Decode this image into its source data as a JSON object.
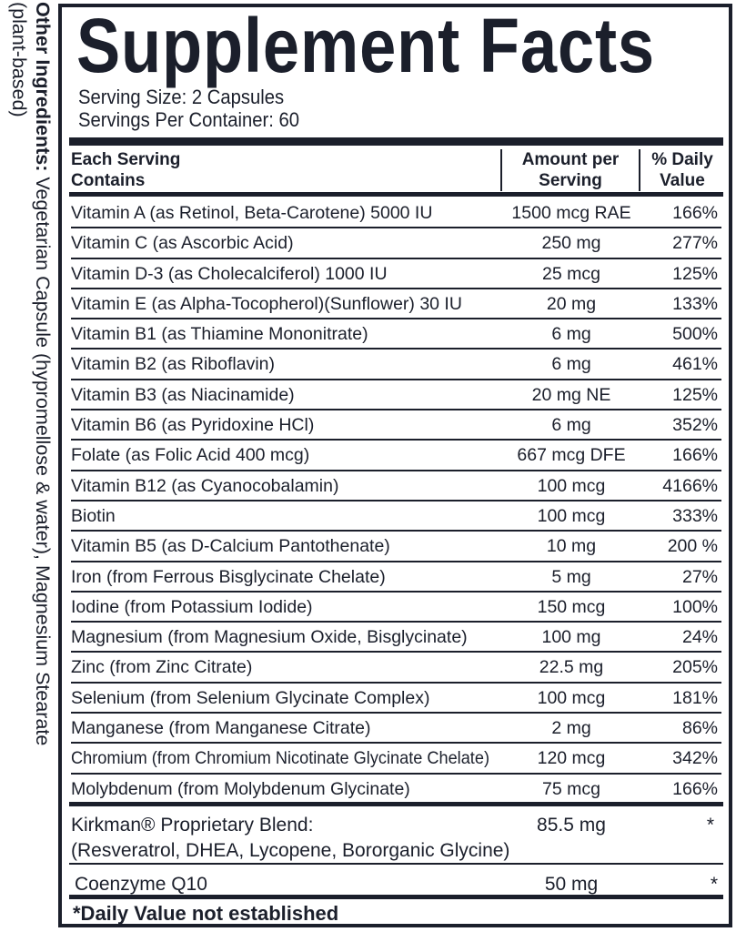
{
  "side_panel": {
    "label": "Other Ingredients:",
    "text": " Vegetarian Capsule (hypromellose & water), Magnesium Stearate",
    "line2": "(plant-based)"
  },
  "title": "Supplement Facts",
  "serving_size": "Serving Size: 2 Capsules",
  "servings_per_container": "Servings Per Container: 60",
  "header": {
    "col1": "Each Serving\nContains",
    "col2": "Amount per\nServing",
    "col3": "% Daily\nValue"
  },
  "rows": [
    {
      "name": "Vitamin A (as Retinol, Beta-Carotene) 5000 IU",
      "amount": "1500 mcg RAE",
      "dv": "166%"
    },
    {
      "name": "Vitamin C (as Ascorbic Acid)",
      "amount": "250 mg",
      "dv": "277%"
    },
    {
      "name": "Vitamin D-3 (as Cholecalciferol) 1000 IU",
      "amount": "25 mcg",
      "dv": "125%"
    },
    {
      "name": "Vitamin E (as Alpha-Tocopherol)(Sunflower) 30 IU",
      "amount": "20 mg",
      "dv": "133%"
    },
    {
      "name": "Vitamin B1 (as Thiamine Mononitrate)",
      "amount": "6 mg",
      "dv": "500%"
    },
    {
      "name": "Vitamin B2 (as Riboflavin)",
      "amount": "6 mg",
      "dv": "461%"
    },
    {
      "name": "Vitamin B3 (as Niacinamide)",
      "amount": "20 mg NE",
      "dv": "125%"
    },
    {
      "name": "Vitamin B6 (as Pyridoxine HCl)",
      "amount": "6 mg",
      "dv": "352%"
    },
    {
      "name": "Folate (as Folic Acid 400 mcg)",
      "amount": "667 mcg DFE",
      "dv": "166%"
    },
    {
      "name": "Vitamin B12 (as Cyanocobalamin)",
      "amount": "100 mcg",
      "dv": "4166%"
    },
    {
      "name": "Biotin",
      "amount": "100 mcg",
      "dv": "333%"
    },
    {
      "name": "Vitamin B5 (as D-Calcium Pantothenate)",
      "amount": "10 mg",
      "dv": "200 %"
    },
    {
      "name": "Iron (from Ferrous Bisglycinate Chelate)",
      "amount": "5 mg",
      "dv": "27%"
    },
    {
      "name": "Iodine (from Potassium Iodide)",
      "amount": "150 mcg",
      "dv": "100%"
    },
    {
      "name": "Magnesium (from Magnesium Oxide, Bisglycinate)",
      "amount": "100 mg",
      "dv": "24%"
    },
    {
      "name": "Zinc (from Zinc Citrate)",
      "amount": "22.5 mg",
      "dv": "205%"
    },
    {
      "name": "Selenium (from Selenium Glycinate Complex)",
      "amount": "100 mcg",
      "dv": "181%"
    },
    {
      "name": "Manganese (from Manganese Citrate)",
      "amount": "2 mg",
      "dv": "86%"
    },
    {
      "name": "Chromium (from Chromium Nicotinate Glycinate Chelate)",
      "amount": "120 mcg",
      "dv": "342%"
    },
    {
      "name": "Molybdenum (from Molybdenum Glycinate)",
      "amount": "75 mcg",
      "dv": "166%"
    }
  ],
  "blend": {
    "name": "Kirkman® Proprietary Blend:",
    "ingredients": "(Resveratrol, DHEA, Lycopene, Bororganic Glycine)",
    "amount": "85.5 mg",
    "dv": "*"
  },
  "coq10": {
    "name": "Coenzyme Q10",
    "amount": "50 mg",
    "dv": "*"
  },
  "footnote": "*Daily Value not established"
}
